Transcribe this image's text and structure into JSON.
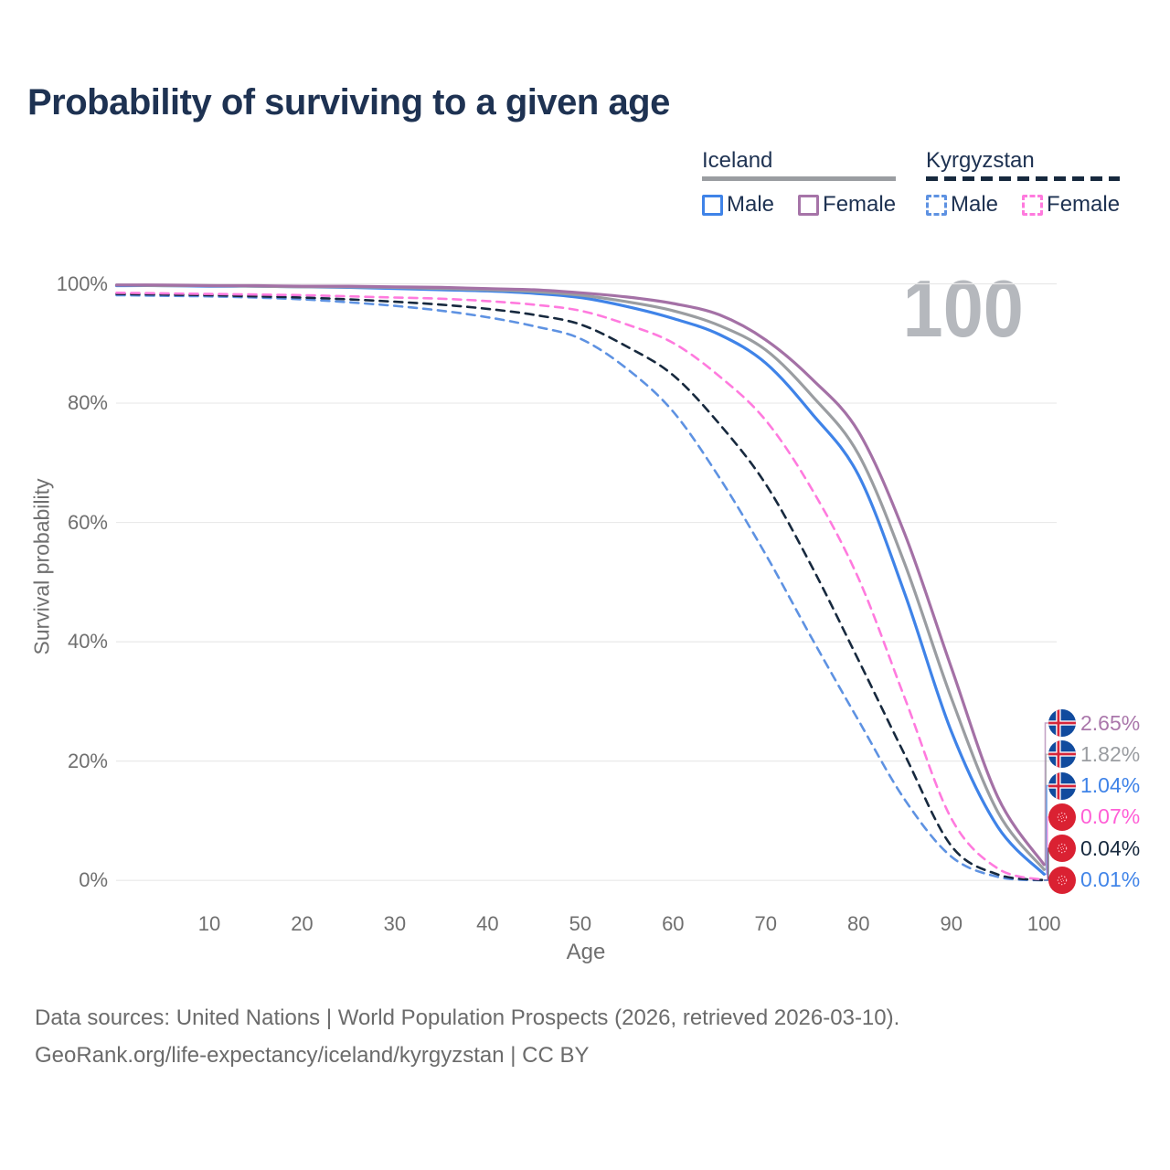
{
  "title": "Probability of surviving to a given age",
  "watermark": "100",
  "legend": {
    "groups": [
      {
        "country": "Iceland",
        "line_style": "solid",
        "underline_color": "#9a9da1",
        "items": [
          {
            "label": "Male",
            "color": "#3f83e8",
            "dashed": false
          },
          {
            "label": "Female",
            "color": "#a674a8",
            "dashed": false
          }
        ]
      },
      {
        "country": "Kyrgyzstan",
        "line_style": "dashed",
        "underline_color": "#17293e",
        "items": [
          {
            "label": "Male",
            "color": "#5e92e2",
            "dashed": true
          },
          {
            "label": "Female",
            "color": "#ff7ade",
            "dashed": true
          }
        ]
      }
    ]
  },
  "axes": {
    "y_label": "Survival probability",
    "x_label": "Age",
    "y_ticks": [
      {
        "value": 100,
        "label": "100%"
      },
      {
        "value": 80,
        "label": "80%"
      },
      {
        "value": 60,
        "label": "60%"
      },
      {
        "value": 40,
        "label": "40%"
      },
      {
        "value": 20,
        "label": "20%"
      },
      {
        "value": 0,
        "label": "0%"
      }
    ],
    "x_ticks": [
      10,
      20,
      30,
      40,
      50,
      60,
      70,
      80,
      90,
      100
    ]
  },
  "chart_data": {
    "type": "line",
    "title": "Probability of surviving to a given age",
    "xlabel": "Age",
    "ylabel": "Survival probability",
    "xlim": [
      0,
      100
    ],
    "ylim": [
      0,
      100
    ],
    "grid": "horizontal",
    "legend_position": "top-right",
    "ages": [
      0,
      5,
      10,
      15,
      20,
      25,
      30,
      35,
      40,
      45,
      50,
      55,
      60,
      65,
      70,
      75,
      80,
      85,
      90,
      95,
      100
    ],
    "series": [
      {
        "name": "Iceland — Female",
        "country": "Iceland",
        "sex": "Female",
        "color": "#a471a6",
        "dashed": false,
        "flag": "iceland",
        "end_label": "2.65%",
        "label_color": "#aa77ab",
        "values": [
          99.8,
          99.8,
          99.7,
          99.7,
          99.6,
          99.6,
          99.5,
          99.4,
          99.2,
          99.0,
          98.5,
          97.8,
          96.7,
          94.8,
          90.6,
          84.0,
          75.2,
          58.0,
          35.7,
          14.0,
          2.65
        ]
      },
      {
        "name": "Iceland — Both sexes",
        "country": "Iceland",
        "sex": "Both",
        "color": "#9a9da1",
        "dashed": false,
        "flag": "iceland",
        "end_label": "1.82%",
        "label_color": "#9a9da1",
        "values": [
          99.8,
          99.7,
          99.7,
          99.6,
          99.5,
          99.5,
          99.4,
          99.2,
          99.0,
          98.7,
          98.1,
          97.0,
          95.5,
          93.0,
          88.9,
          81.2,
          71.4,
          53.0,
          30.6,
          11.5,
          1.82
        ]
      },
      {
        "name": "Iceland — Male",
        "country": "Iceland",
        "sex": "Male",
        "color": "#3f83e8",
        "dashed": false,
        "flag": "iceland",
        "end_label": "1.04%",
        "label_color": "#3f83e8",
        "values": [
          99.7,
          99.7,
          99.6,
          99.6,
          99.5,
          99.4,
          99.2,
          99.0,
          98.8,
          98.4,
          97.7,
          96.2,
          94.2,
          91.5,
          86.7,
          78.2,
          67.9,
          48.0,
          25.0,
          9.0,
          1.04
        ]
      },
      {
        "name": "Kyrgyzstan — Female",
        "country": "Kyrgyzstan",
        "sex": "Female",
        "color": "#ff7ade",
        "dashed": true,
        "flag": "kyrgyzstan",
        "end_label": "0.07%",
        "label_color": "#ff5fd6",
        "values": [
          98.5,
          98.4,
          98.3,
          98.2,
          98.1,
          97.9,
          97.7,
          97.5,
          97.1,
          96.5,
          95.5,
          93.2,
          90.1,
          84.5,
          77.1,
          65.5,
          50.6,
          30.5,
          10.4,
          2.0,
          0.07
        ]
      },
      {
        "name": "Kyrgyzstan — Both sexes",
        "country": "Kyrgyzstan",
        "sex": "Both",
        "color": "#17293e",
        "dashed": true,
        "flag": "kyrgyzstan",
        "end_label": "0.04%",
        "label_color": "#17293e",
        "values": [
          98.3,
          98.2,
          98.1,
          97.9,
          97.7,
          97.4,
          97.0,
          96.5,
          95.8,
          94.8,
          93.2,
          89.5,
          84.7,
          76.5,
          66.4,
          52.5,
          36.9,
          21.0,
          5.8,
          1.0,
          0.04
        ]
      },
      {
        "name": "Kyrgyzstan — Male",
        "country": "Kyrgyzstan",
        "sex": "Male",
        "color": "#5e92e2",
        "dashed": true,
        "flag": "kyrgyzstan",
        "end_label": "0.01%",
        "label_color": "#4285e8",
        "values": [
          98.1,
          98.0,
          97.9,
          97.7,
          97.4,
          96.9,
          96.3,
          95.5,
          94.4,
          92.9,
          90.8,
          85.8,
          78.6,
          67.5,
          54.6,
          40.5,
          26.8,
          13.5,
          4.0,
          0.6,
          0.01
        ]
      }
    ]
  },
  "footer": {
    "line1": "Data sources: United Nations | World Population Prospects (2026, retrieved 2026-03-10).",
    "line2": "GeoRank.org/life-expectancy/iceland/kyrgyzstan | CC BY"
  }
}
